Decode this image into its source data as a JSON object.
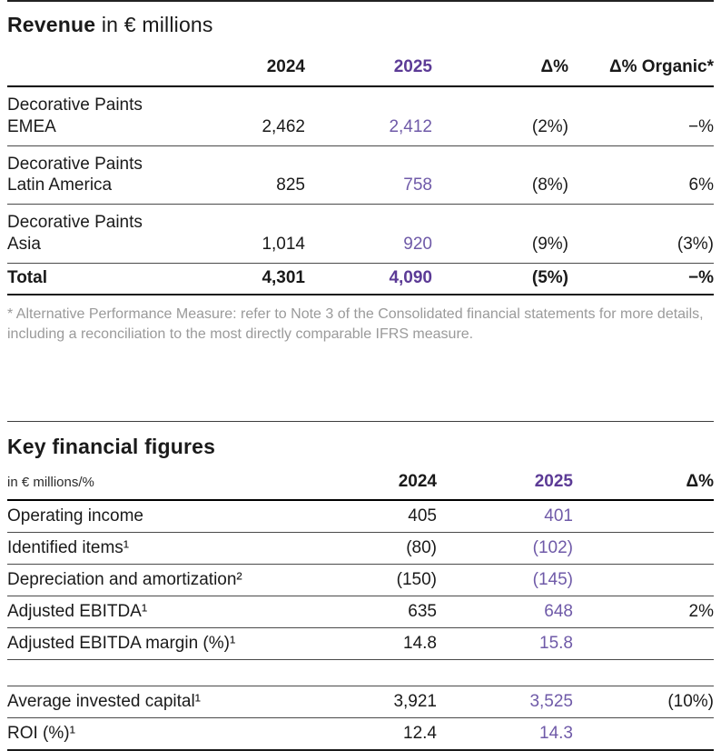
{
  "colors": {
    "accent_purple_bold": "#5C3B96",
    "accent_purple_value": "#6F5AA8",
    "text": "#1a1a1a",
    "footnote_gray": "#9a9a9a"
  },
  "revenue_table": {
    "title_bold": "Revenue",
    "title_rest": " in € millions",
    "columns": [
      "",
      "2024",
      "2025",
      "Δ%",
      "Δ% Organic*"
    ],
    "rows": [
      {
        "label": "Decorative Paints\nEMEA",
        "y2024": "2,462",
        "y2025": "2,412",
        "delta": "(2%)",
        "organic": "−%"
      },
      {
        "label": "Decorative Paints\nLatin America",
        "y2024": "825",
        "y2025": "758",
        "delta": "(8%)",
        "organic": "6%"
      },
      {
        "label": "Decorative Paints\nAsia",
        "y2024": "1,014",
        "y2025": "920",
        "delta": "(9%)",
        "organic": "(3%)"
      }
    ],
    "total": {
      "label": "Total",
      "y2024": "4,301",
      "y2025": "4,090",
      "delta": "(5%)",
      "organic": "−%"
    },
    "footnote": "* Alternative Performance Measure: refer to Note 3 of the Consolidated financial statements for more details, including a reconciliation to the most directly comparable IFRS measure."
  },
  "key_figures_table": {
    "title": "Key financial figures",
    "unit_label": "in € millions/%",
    "columns": [
      "2024",
      "2025",
      "Δ%"
    ],
    "rows": [
      {
        "label": "Operating income",
        "y2024": "405",
        "y2025": "401",
        "delta": ""
      },
      {
        "label": "Identified items¹",
        "y2024": "(80)",
        "y2025": "(102)",
        "delta": ""
      },
      {
        "label": "Depreciation and amortization²",
        "y2024": "(150)",
        "y2025": "(145)",
        "delta": ""
      },
      {
        "label": "Adjusted EBITDA¹",
        "y2024": "635",
        "y2025": "648",
        "delta": "2%"
      },
      {
        "label": "Adjusted EBITDA margin (%)¹",
        "y2024": "14.8",
        "y2025": "15.8",
        "delta": ""
      },
      {
        "label": "Average invested capital¹",
        "y2024": "3,921",
        "y2025": "3,525",
        "delta": "(10%)"
      },
      {
        "label": "ROI (%)¹",
        "y2024": "12.4",
        "y2025": "14.3",
        "delta": ""
      }
    ]
  }
}
